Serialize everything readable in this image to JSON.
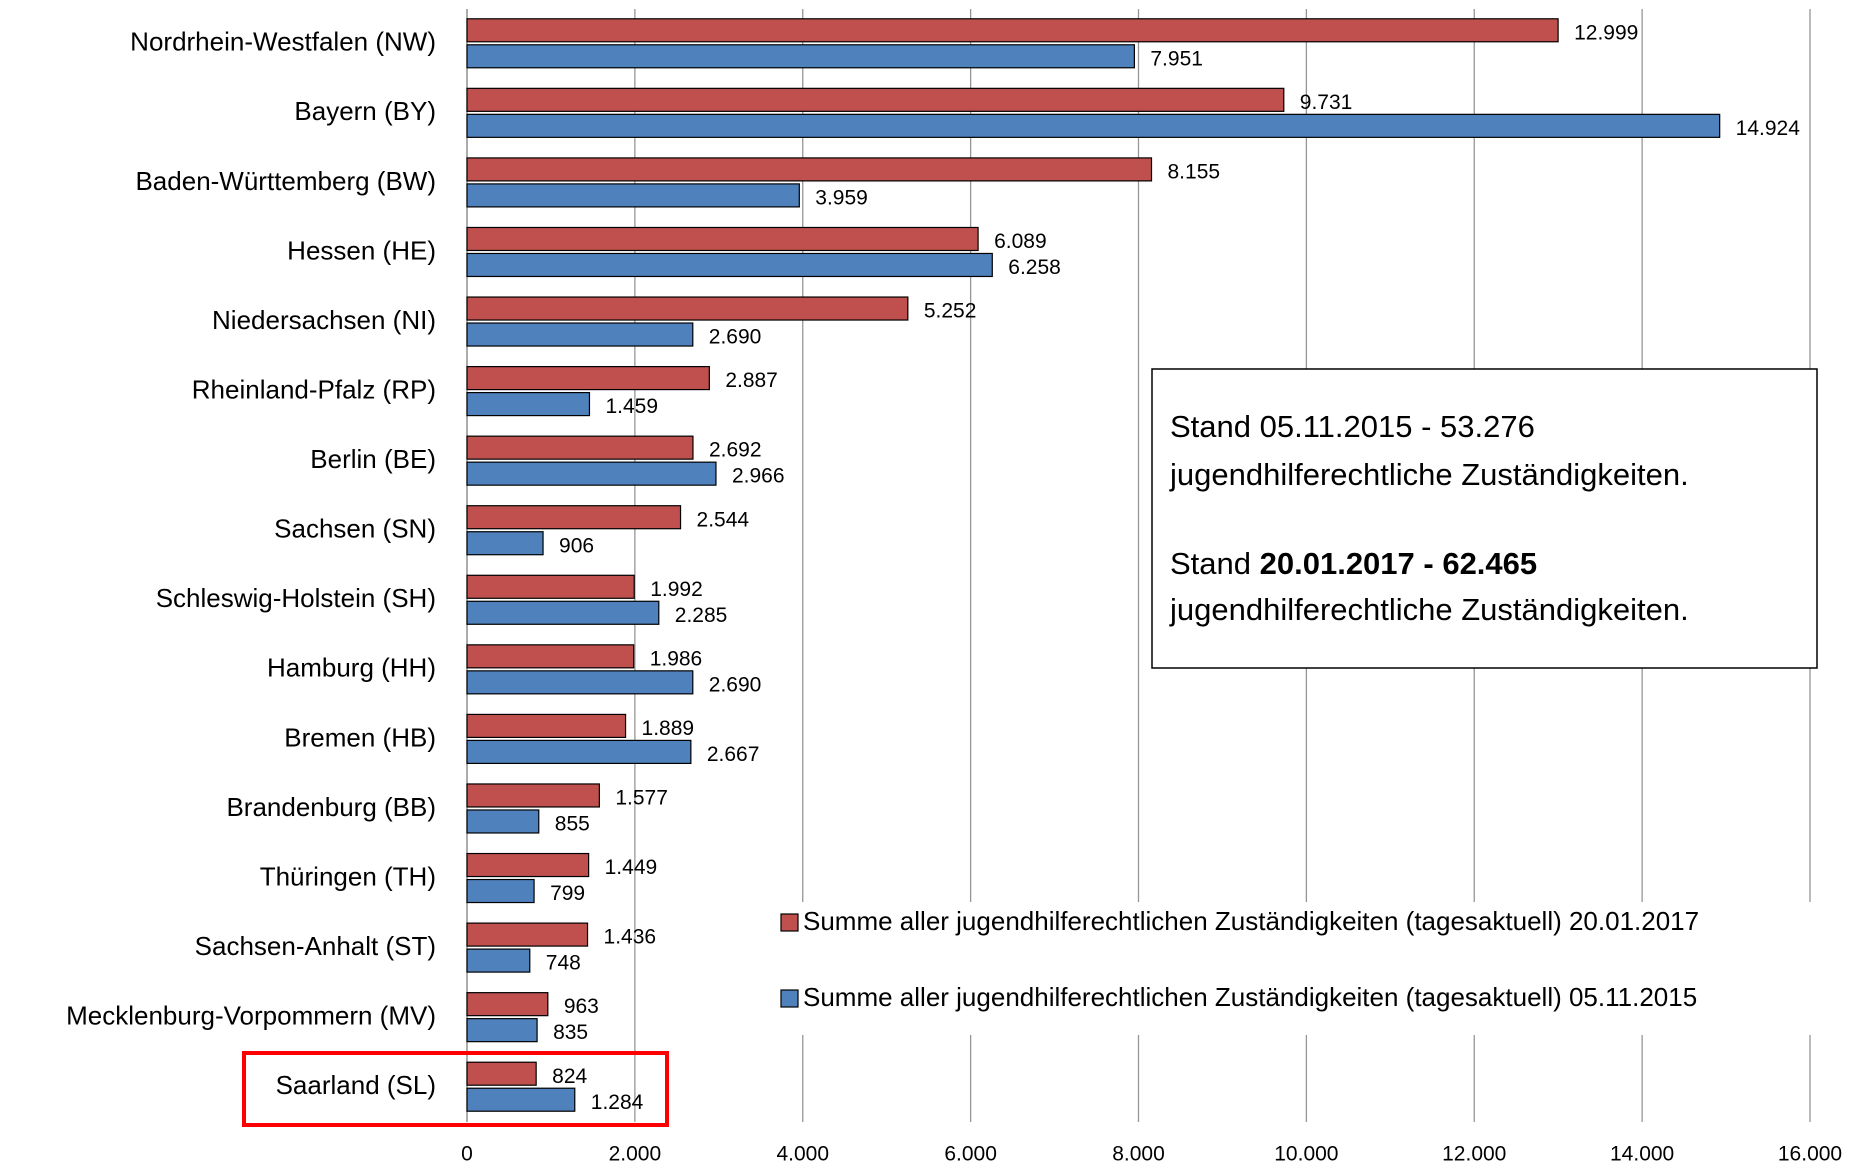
{
  "chart_data": {
    "type": "barh",
    "categories": [
      "Nordrhein-Westfalen (NW)",
      "Bayern (BY)",
      "Baden-Württemberg (BW)",
      "Hessen (HE)",
      "Niedersachsen (NI)",
      "Rheinland-Pfalz (RP)",
      "Berlin (BE)",
      "Sachsen (SN)",
      "Schleswig-Holstein (SH)",
      "Hamburg (HH)",
      "Bremen (HB)",
      "Brandenburg (BB)",
      "Thüringen (TH)",
      "Sachsen-Anhalt (ST)",
      "Mecklenburg-Vorpommern (MV)",
      "Saarland (SL)"
    ],
    "series": [
      {
        "name": "Summe aller jugendhilferechtlichen Zuständigkeiten (tagesaktuell) 20.01.2017",
        "color": "#c0504d",
        "values": [
          12999,
          9731,
          8155,
          6089,
          5252,
          2887,
          2692,
          2544,
          1992,
          1986,
          1889,
          1577,
          1449,
          1436,
          963,
          824
        ],
        "value_labels": [
          "12.999",
          "9.731",
          "8.155",
          "6.089",
          "5.252",
          "2.887",
          "2.692",
          "2.544",
          "1.992",
          "1.986",
          "1.889",
          "1.577",
          "1.449",
          "1.436",
          "963",
          "824"
        ]
      },
      {
        "name": "Summe aller jugendhilferechtlichen Zuständigkeiten (tagesaktuell) 05.11.2015",
        "color": "#4f81bd",
        "values": [
          7951,
          14924,
          3959,
          6258,
          2690,
          1459,
          2966,
          906,
          2285,
          2690,
          2667,
          855,
          799,
          748,
          835,
          1284
        ],
        "value_labels": [
          "7.951",
          "14.924",
          "3.959",
          "6.258",
          "2.690",
          "1.459",
          "2.966",
          "906",
          "2.285",
          "2.690",
          "2.667",
          "855",
          "799",
          "748",
          "835",
          "1.284"
        ]
      }
    ],
    "xlim": [
      0,
      16000
    ],
    "xticks": [
      0,
      {
        "value": 2000,
        "label": "2.000"
      },
      {
        "value": 4000,
        "label": "4.000"
      },
      {
        "value": 6000,
        "label": "6.000"
      },
      {
        "value": 8000,
        "label": "8.000"
      },
      {
        "value": 10000,
        "label": "10.000"
      },
      {
        "value": 12000,
        "label": "12.000"
      },
      {
        "value": 14000,
        "label": "14.000"
      },
      {
        "value": 16000,
        "label": "16.000"
      }
    ],
    "grid": true,
    "annotation": {
      "line1": "Stand 05.11.2015 - 53.276",
      "line2": "jugendhilferechtliche Zuständigkeiten.",
      "line3": "Stand ",
      "line3_bold": "20.01.2017 - 62.465",
      "line4": "jugendhilferechtliche Zuständigkeiten."
    }
  }
}
